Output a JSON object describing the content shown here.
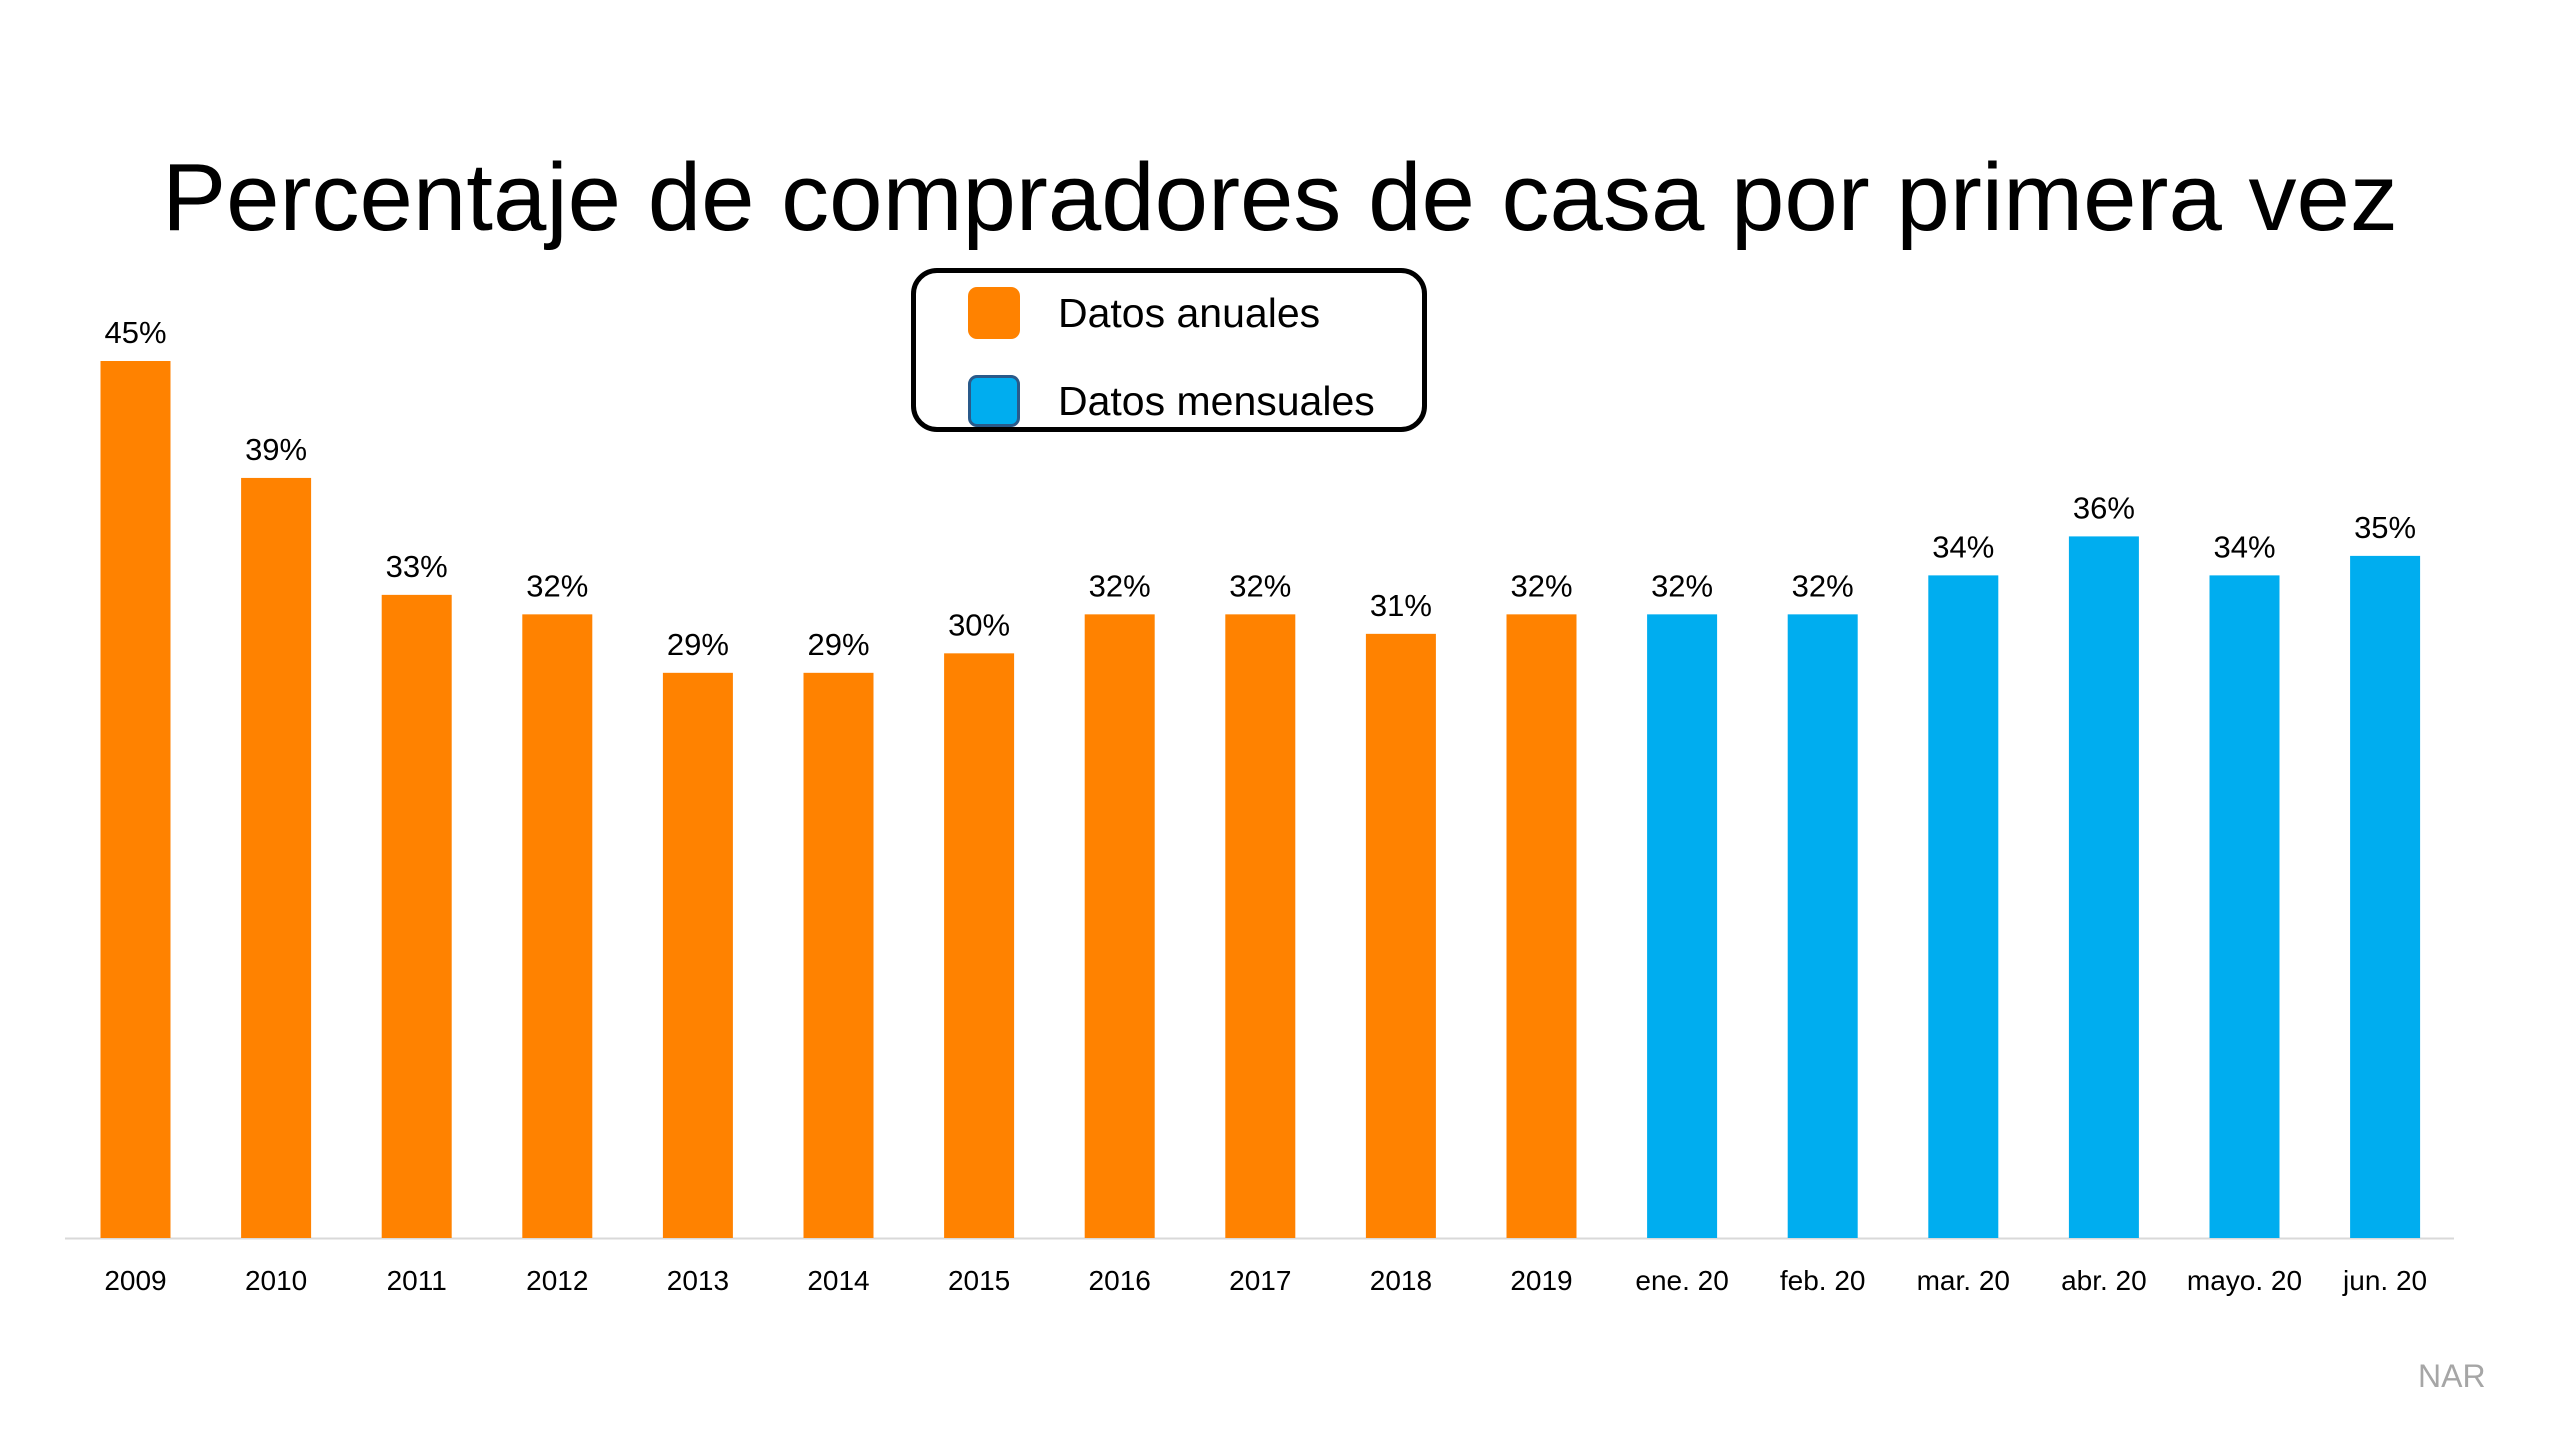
{
  "chart_data": {
    "type": "bar",
    "title": "Percentaje de compradores de casa por primera vez",
    "categories": [
      "2009",
      "2010",
      "2011",
      "2012",
      "2013",
      "2014",
      "2015",
      "2016",
      "2017",
      "2018",
      "2019",
      "ene. 20",
      "feb. 20",
      "mar. 20",
      "abr. 20",
      "mayo. 20",
      "jun. 20"
    ],
    "values": [
      45,
      39,
      33,
      32,
      29,
      29,
      30,
      32,
      32,
      31,
      32,
      32,
      32,
      34,
      36,
      34,
      35
    ],
    "data_labels": [
      "45%",
      "39%",
      "33%",
      "32%",
      "29%",
      "29%",
      "30%",
      "32%",
      "32%",
      "31%",
      "32%",
      "32%",
      "32%",
      "34%",
      "36%",
      "34%",
      "35%"
    ],
    "series_index": [
      0,
      0,
      0,
      0,
      0,
      0,
      0,
      0,
      0,
      0,
      0,
      1,
      1,
      1,
      1,
      1,
      1
    ],
    "series": [
      {
        "name": "Datos anuales",
        "color": "#ff8200"
      },
      {
        "name": "Datos mensuales",
        "color": "#00adef"
      }
    ],
    "ylim": [
      0,
      45
    ],
    "grid": false,
    "legend_position": "top-center",
    "xlabel": "",
    "ylabel": ""
  },
  "source": "NAR"
}
